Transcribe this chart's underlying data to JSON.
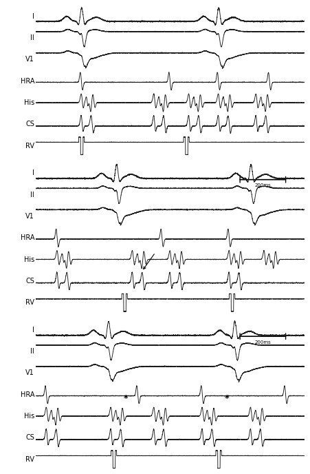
{
  "fig_width": 4.52,
  "fig_height": 6.88,
  "dpi": 100,
  "background_color": "#ffffff",
  "line_color": "#1a1a1a",
  "label_color": "#000000",
  "label_fontsize": 7,
  "scalebar_fontsize": 5,
  "channel_names": [
    "I",
    "II",
    "V1",
    "HRA",
    "His",
    "CS",
    "RV"
  ],
  "panels": [
    {
      "I_beats": [
        0.17,
        0.68
      ],
      "II_beats": [
        0.17,
        0.68
      ],
      "V1_beats": [
        0.17,
        0.68
      ],
      "HRA_beats": [
        0.17,
        0.5,
        0.68,
        0.87
      ],
      "His_beats": [
        0.17,
        0.44,
        0.57,
        0.68,
        0.82
      ],
      "CS_beats": [
        0.17,
        0.44,
        0.57,
        0.68,
        0.82
      ],
      "RV_beats": [
        0.17,
        0.56
      ],
      "arrow": null,
      "stars": []
    },
    {
      "I_beats": [
        0.3,
        0.8
      ],
      "II_beats": [
        0.3,
        0.8
      ],
      "V1_beats": [
        0.3,
        0.8
      ],
      "HRA_beats": [
        0.08,
        0.47,
        0.72
      ],
      "His_beats": [
        0.08,
        0.36,
        0.5,
        0.72,
        0.85
      ],
      "CS_beats": [
        0.08,
        0.36,
        0.5,
        0.72
      ],
      "RV_beats": [
        0.33,
        0.73
      ],
      "arrow": 0.415,
      "stars": []
    },
    {
      "I_beats": [
        0.27,
        0.74
      ],
      "II_beats": [
        0.27,
        0.74
      ],
      "V1_beats": [
        0.27,
        0.74
      ],
      "HRA_beats": [
        0.04,
        0.38,
        0.62,
        0.93
      ],
      "His_beats": [
        0.04,
        0.28,
        0.44,
        0.62,
        0.8
      ],
      "CS_beats": [
        0.04,
        0.28,
        0.44,
        0.62,
        0.8
      ],
      "RV_beats": [
        0.29,
        0.68
      ],
      "arrow": null,
      "stars": [
        0.335,
        0.71
      ]
    }
  ]
}
